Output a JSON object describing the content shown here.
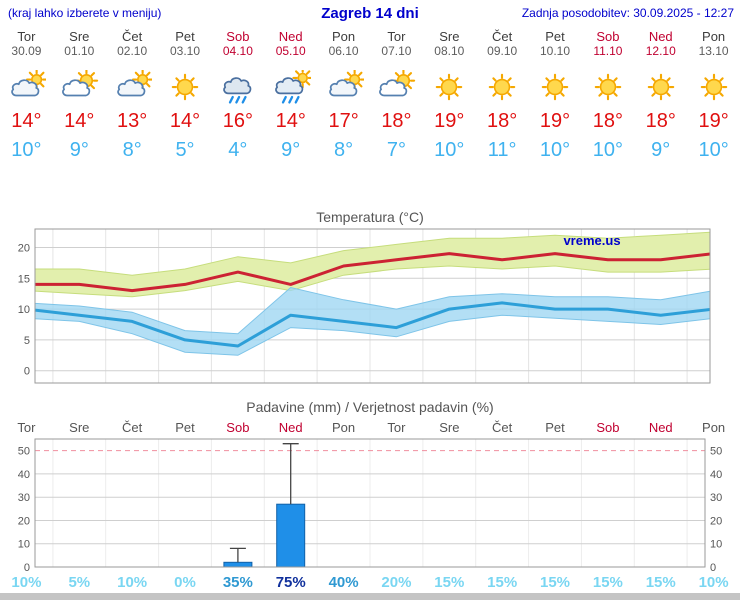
{
  "header": {
    "left_note": "(kraj lahko izberete v meniju)",
    "title": "Zagreb 14 dni",
    "updated": "Zadnja posodobitev: 30.09.2025 - 12:27"
  },
  "colors": {
    "header_blue": "#0000cc",
    "temp_max_red": "#cc2233",
    "temp_min_blue": "#2d9fd8",
    "weekend_red": "#c00030",
    "bar_blue": "#1f8fe8",
    "prob_low": "#79d6f2",
    "prob_mid": "#2f99d2",
    "prob_high": "#10309c"
  },
  "days": [
    {
      "name": "Tor",
      "date": "30.09",
      "weekend": false,
      "icon": "mostly-cloudy",
      "tmax": "14°",
      "tmin": "10°"
    },
    {
      "name": "Sre",
      "date": "01.10",
      "weekend": false,
      "icon": "partly-cloudy",
      "tmax": "14°",
      "tmin": "9°"
    },
    {
      "name": "Čet",
      "date": "02.10",
      "weekend": false,
      "icon": "mostly-cloudy",
      "tmax": "13°",
      "tmin": "8°"
    },
    {
      "name": "Pet",
      "date": "03.10",
      "weekend": false,
      "icon": "sunny",
      "tmax": "14°",
      "tmin": "5°"
    },
    {
      "name": "Sob",
      "date": "04.10",
      "weekend": true,
      "icon": "rain",
      "tmax": "16°",
      "tmin": "4°"
    },
    {
      "name": "Ned",
      "date": "05.10",
      "weekend": true,
      "icon": "rain-sun",
      "tmax": "14°",
      "tmin": "9°"
    },
    {
      "name": "Pon",
      "date": "06.10",
      "weekend": false,
      "icon": "mostly-cloudy",
      "tmax": "17°",
      "tmin": "8°"
    },
    {
      "name": "Tor",
      "date": "07.10",
      "weekend": false,
      "icon": "partly-cloudy",
      "tmax": "18°",
      "tmin": "7°"
    },
    {
      "name": "Sre",
      "date": "08.10",
      "weekend": false,
      "icon": "sunny",
      "tmax": "19°",
      "tmin": "10°"
    },
    {
      "name": "Čet",
      "date": "09.10",
      "weekend": false,
      "icon": "sunny",
      "tmax": "18°",
      "tmin": "11°"
    },
    {
      "name": "Pet",
      "date": "10.10",
      "weekend": false,
      "icon": "sunny",
      "tmax": "19°",
      "tmin": "10°"
    },
    {
      "name": "Sob",
      "date": "11.10",
      "weekend": true,
      "icon": "sunny",
      "tmax": "18°",
      "tmin": "10°"
    },
    {
      "name": "Ned",
      "date": "12.10",
      "weekend": true,
      "icon": "sunny",
      "tmax": "18°",
      "tmin": "9°"
    },
    {
      "name": "Pon",
      "date": "13.10",
      "weekend": false,
      "icon": "sunny",
      "tmax": "19°",
      "tmin": "10°"
    }
  ],
  "chart_data": [
    {
      "type": "line",
      "title": "Temperatura (°C)",
      "categories": [
        "Tor",
        "Sre",
        "Čet",
        "Pet",
        "Sob",
        "Ned",
        "Pon",
        "Tor",
        "Sre",
        "Čet",
        "Pet",
        "Sob",
        "Ned",
        "Pon"
      ],
      "xlabel": "",
      "ylabel": "",
      "ylim": [
        -2,
        23
      ],
      "yticks": [
        0,
        5,
        10,
        15,
        20
      ],
      "grid": true,
      "legend": "none",
      "watermark": "vreme.us",
      "series": [
        {
          "name": "t_max",
          "values": [
            14,
            14,
            13,
            14,
            16,
            14,
            17,
            18,
            19,
            18,
            19,
            18,
            18,
            19
          ]
        },
        {
          "name": "t_max_upper",
          "values": [
            16.5,
            16.5,
            15.5,
            16.5,
            18.5,
            17.5,
            19.5,
            20.5,
            21.5,
            21.5,
            22,
            21.5,
            22,
            22.5
          ]
        },
        {
          "name": "t_max_lower",
          "values": [
            13,
            12.5,
            12,
            13,
            14.5,
            13,
            15.5,
            16.5,
            17,
            16.5,
            17,
            16,
            16,
            16.5
          ]
        },
        {
          "name": "t_min",
          "values": [
            10,
            9,
            8,
            5,
            4,
            9,
            8,
            7,
            10,
            11,
            10,
            10,
            9,
            10
          ]
        },
        {
          "name": "t_min_upper",
          "values": [
            11,
            10.5,
            9.5,
            6.5,
            6,
            13.5,
            11.5,
            10,
            12,
            12.5,
            12,
            12,
            11.5,
            13
          ]
        },
        {
          "name": "t_min_lower",
          "values": [
            8.5,
            8,
            6,
            3,
            2.5,
            7,
            6.5,
            5.5,
            8,
            9,
            8.5,
            8,
            7.5,
            8.5
          ]
        }
      ]
    },
    {
      "type": "bar",
      "title": "Padavine (mm) / Verjetnost padavin (%)",
      "categories": [
        "Tor",
        "Sre",
        "Čet",
        "Pet",
        "Sob",
        "Ned",
        "Pon",
        "Tor",
        "Sre",
        "Čet",
        "Pet",
        "Sob",
        "Ned",
        "Pon"
      ],
      "values": [
        0,
        0,
        0,
        0,
        2,
        27,
        0,
        0,
        0,
        0,
        0,
        0,
        0,
        0
      ],
      "whisker_max": [
        0,
        0,
        0,
        0,
        8,
        53,
        0,
        0,
        0,
        0,
        0,
        0,
        0,
        0
      ],
      "probabilities": [
        "10%",
        "5%",
        "10%",
        "0%",
        "35%",
        "75%",
        "40%",
        "20%",
        "15%",
        "15%",
        "15%",
        "15%",
        "15%",
        "10%"
      ],
      "xlabel": "",
      "ylabel": "",
      "ylim": [
        0,
        55
      ],
      "yticks": [
        0,
        10,
        20,
        30,
        40,
        50
      ],
      "grid": true,
      "legend": "none"
    }
  ]
}
